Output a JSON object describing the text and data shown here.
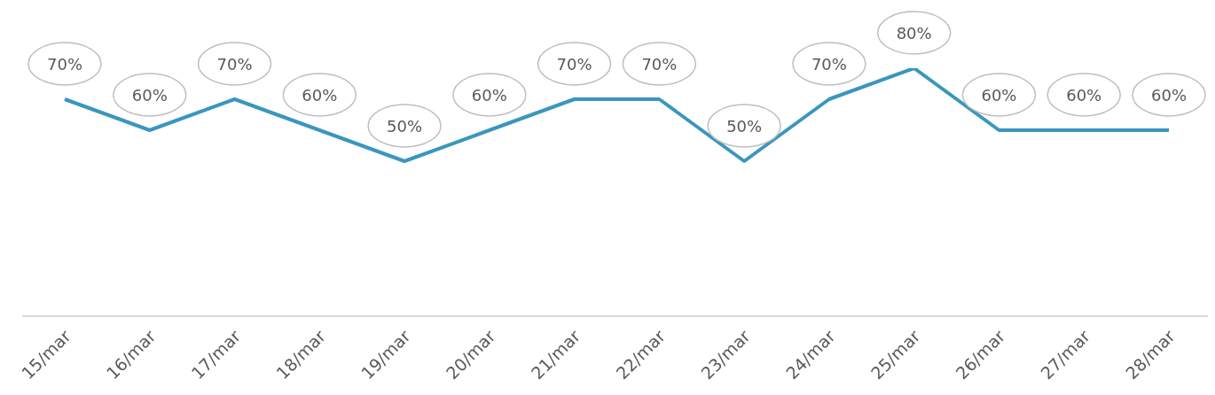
{
  "chart_data": {
    "type": "line",
    "categories": [
      "15/mar",
      "16/mar",
      "17/mar",
      "18/mar",
      "19/mar",
      "20/mar",
      "21/mar",
      "22/mar",
      "23/mar",
      "24/mar",
      "25/mar",
      "26/mar",
      "27/mar",
      "28/mar"
    ],
    "series": [
      {
        "color": "#3a96be",
        "values": [
          70,
          60,
          70,
          60,
          50,
          60,
          70,
          70,
          50,
          70,
          80,
          60,
          60,
          60
        ],
        "value_labels": [
          "70%",
          "60%",
          "70%",
          "60%",
          "50%",
          "60%",
          "70%",
          "70%",
          "50%",
          "70%",
          "80%",
          "60%",
          "60%",
          "60%"
        ]
      }
    ],
    "tick_labels": "x",
    "marker": "none",
    "line_style": "solid"
  }
}
